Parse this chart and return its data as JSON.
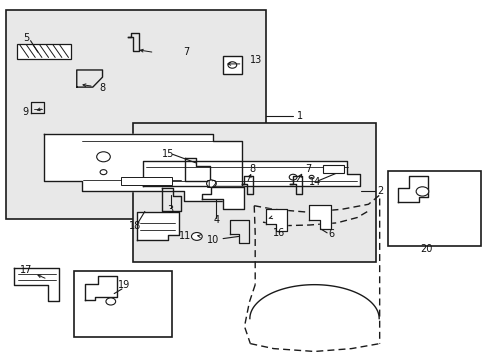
{
  "bg_color": "#e8e8e8",
  "line_color": "#1a1a1a",
  "white": "#ffffff"
}
